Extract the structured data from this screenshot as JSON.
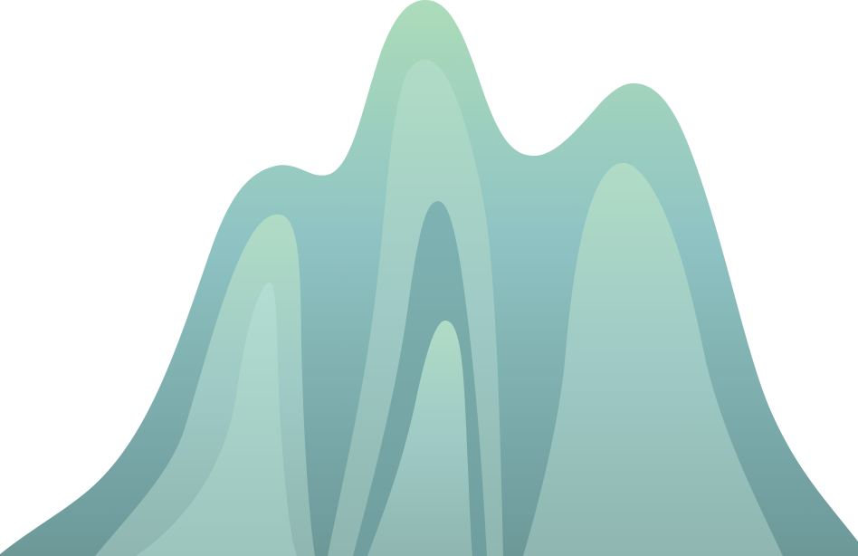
{
  "illustration": {
    "subject": "stylized-mountain-range",
    "colors": {
      "peak_top": "#a8d8bb",
      "mid": "#8ec3c3",
      "base": "#6f9c9c",
      "layer_light": "#acd6c9",
      "layer_light_base": "#93b9b4",
      "layer_inner": "#9ccbc5",
      "background": "#ffffff"
    }
  }
}
